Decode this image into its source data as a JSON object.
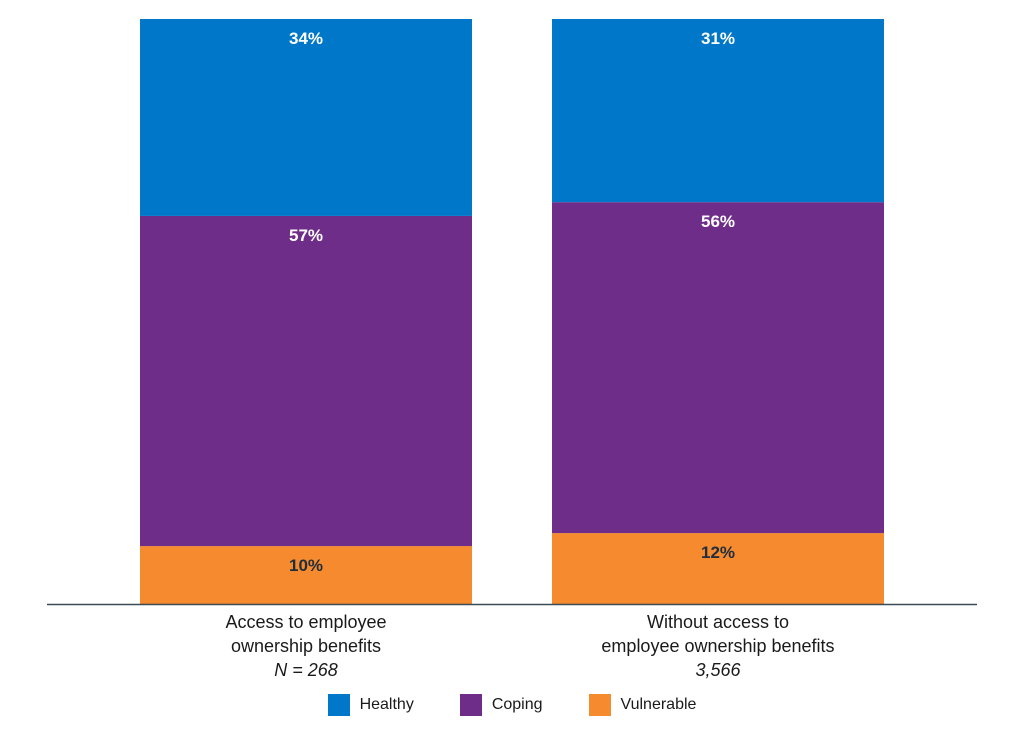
{
  "chart_data": {
    "type": "bar",
    "stacked": true,
    "categories": [
      {
        "lines": [
          "Access to employee",
          "ownership benefits"
        ],
        "n": "N = 268"
      },
      {
        "lines": [
          "Without access to",
          "employee ownership benefits"
        ],
        "n": "3,566"
      }
    ],
    "series": [
      {
        "name": "Vulnerable",
        "color": "#f58b2e",
        "label_color": "#1f2d3d",
        "values": [
          10,
          12
        ],
        "labels": [
          "10%",
          "12%"
        ]
      },
      {
        "name": "Coping",
        "color": "#6f2d8a",
        "label_color": "#ffffff",
        "values": [
          57,
          56
        ],
        "labels": [
          "57%",
          "56%"
        ]
      },
      {
        "name": "Healthy",
        "color": "#0077c8",
        "label_color": "#ffffff",
        "values": [
          34,
          31
        ],
        "labels": [
          "34%",
          "31%"
        ]
      }
    ],
    "legend_order": [
      "Healthy",
      "Coping",
      "Vulnerable"
    ],
    "legend_position": "bottom",
    "grid": false,
    "axis_color": "#3b4a55"
  }
}
